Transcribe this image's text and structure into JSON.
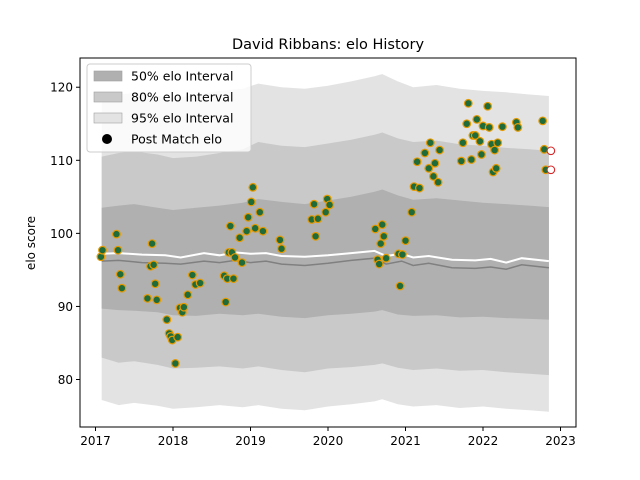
{
  "chart_data": {
    "type": "scatter",
    "title": "David Ribbans: elo History",
    "xlabel": "",
    "ylabel": "elo score",
    "xlim": [
      2016.8,
      2023.2
    ],
    "ylim": [
      73.5,
      124
    ],
    "x_ticks": [
      2017,
      2018,
      2019,
      2020,
      2021,
      2022,
      2023
    ],
    "x_tick_labels": [
      "2017",
      "2018",
      "2019",
      "2020",
      "2021",
      "2022",
      "2023"
    ],
    "y_ticks": [
      80,
      90,
      100,
      110,
      120
    ],
    "y_tick_labels": [
      "80",
      "90",
      "100",
      "110",
      "120"
    ],
    "grid": false,
    "legend_position": "top-left",
    "legend": [
      {
        "label": "50% elo Interval",
        "kind": "band50"
      },
      {
        "label": "80% elo Interval",
        "kind": "band80"
      },
      {
        "label": "95% elo Interval",
        "kind": "band95"
      },
      {
        "label": "Post Match elo",
        "kind": "marker"
      }
    ],
    "colors": {
      "band50": "#b0b0b0",
      "band80": "#c9c9c9",
      "band95": "#e3e3e3",
      "median_line": "#808080",
      "mean_line": "#ffffff",
      "marker_fill": "#1f6b3a",
      "marker_edge": "#e69a00",
      "future_marker_edge": "#d62728"
    },
    "bands": {
      "x": [
        2017.08,
        2017.3,
        2017.5,
        2017.8,
        2018.0,
        2018.3,
        2018.6,
        2018.9,
        2019.1,
        2019.4,
        2019.7,
        2020.0,
        2020.3,
        2020.6,
        2020.7,
        2020.9,
        2021.1,
        2021.4,
        2021.7,
        2022.0,
        2022.3,
        2022.6,
        2022.85
      ],
      "p95_high": [
        118.5,
        119.0,
        119.2,
        118.8,
        118.5,
        118.9,
        119.5,
        119.8,
        120.5,
        120.0,
        119.8,
        120.2,
        120.8,
        121.5,
        121.8,
        120.8,
        120.0,
        120.3,
        119.8,
        119.5,
        119.3,
        119.0,
        118.8
      ],
      "p80_high": [
        110.5,
        111.0,
        111.2,
        110.8,
        110.3,
        110.5,
        111.0,
        111.5,
        112.5,
        112.0,
        111.8,
        112.3,
        112.8,
        113.5,
        113.8,
        113.0,
        112.5,
        112.7,
        112.2,
        112.0,
        111.7,
        111.5,
        111.3
      ],
      "p50_high": [
        103.5,
        103.8,
        104.0,
        103.5,
        103.2,
        103.5,
        103.8,
        104.2,
        104.7,
        104.3,
        104.0,
        104.5,
        105.0,
        105.7,
        106.0,
        105.2,
        104.6,
        104.8,
        104.5,
        104.2,
        104.0,
        103.8,
        103.6
      ],
      "p50_low": [
        89.7,
        89.5,
        89.4,
        89.2,
        88.8,
        88.7,
        89.0,
        88.8,
        89.0,
        88.6,
        88.4,
        88.8,
        89.0,
        89.3,
        89.5,
        88.9,
        88.7,
        88.8,
        88.5,
        88.6,
        88.4,
        88.3,
        88.2
      ],
      "p80_low": [
        83.0,
        82.3,
        82.5,
        82.0,
        81.5,
        81.6,
        81.8,
        81.5,
        81.8,
        81.3,
        81.0,
        81.5,
        81.7,
        82.0,
        82.2,
        81.6,
        81.3,
        81.5,
        81.2,
        81.3,
        81.0,
        80.8,
        80.6
      ],
      "p95_low": [
        77.2,
        76.5,
        76.8,
        76.4,
        76.0,
        76.2,
        76.5,
        76.2,
        76.5,
        76.0,
        75.8,
        76.3,
        76.6,
        77.0,
        77.3,
        76.6,
        76.3,
        76.5,
        76.1,
        76.3,
        76.0,
        75.8,
        75.6
      ]
    },
    "median_line": {
      "x": [
        2017.08,
        2017.3,
        2017.6,
        2017.9,
        2018.1,
        2018.4,
        2018.6,
        2018.8,
        2019.0,
        2019.2,
        2019.4,
        2019.7,
        2020.0,
        2020.3,
        2020.6,
        2020.75,
        2020.95,
        2021.1,
        2021.3,
        2021.6,
        2021.9,
        2022.1,
        2022.3,
        2022.5,
        2022.85
      ],
      "y": [
        96.2,
        96.3,
        96.0,
        95.9,
        95.8,
        96.2,
        96.0,
        96.3,
        96.0,
        96.2,
        95.8,
        95.6,
        95.9,
        96.3,
        96.6,
        95.8,
        96.2,
        95.6,
        95.9,
        95.3,
        95.2,
        95.4,
        95.1,
        95.7,
        95.3
      ]
    },
    "mean_line": {
      "x": [
        2017.08,
        2017.3,
        2017.6,
        2017.9,
        2018.1,
        2018.4,
        2018.6,
        2018.8,
        2019.0,
        2019.2,
        2019.4,
        2019.7,
        2020.0,
        2020.3,
        2020.6,
        2020.75,
        2020.95,
        2021.1,
        2021.3,
        2021.6,
        2021.9,
        2022.1,
        2022.3,
        2022.5,
        2022.85
      ],
      "y": [
        97.2,
        97.3,
        97.1,
        97.0,
        96.7,
        97.3,
        97.0,
        97.4,
        97.2,
        97.3,
        96.9,
        96.8,
        97.0,
        97.3,
        97.6,
        96.9,
        97.2,
        96.7,
        96.9,
        96.4,
        96.3,
        96.5,
        96.0,
        96.6,
        96.2
      ]
    },
    "points": [
      {
        "x": 2017.07,
        "y": 96.8
      },
      {
        "x": 2017.09,
        "y": 97.7
      },
      {
        "x": 2017.27,
        "y": 99.9
      },
      {
        "x": 2017.29,
        "y": 97.7
      },
      {
        "x": 2017.32,
        "y": 94.4
      },
      {
        "x": 2017.34,
        "y": 92.5
      },
      {
        "x": 2017.67,
        "y": 91.1
      },
      {
        "x": 2017.71,
        "y": 95.5
      },
      {
        "x": 2017.73,
        "y": 98.6
      },
      {
        "x": 2017.75,
        "y": 95.7
      },
      {
        "x": 2017.77,
        "y": 93.1
      },
      {
        "x": 2017.79,
        "y": 90.9
      },
      {
        "x": 2017.92,
        "y": 88.2
      },
      {
        "x": 2017.95,
        "y": 86.3
      },
      {
        "x": 2017.97,
        "y": 85.9
      },
      {
        "x": 2017.99,
        "y": 85.4
      },
      {
        "x": 2018.03,
        "y": 82.2
      },
      {
        "x": 2018.06,
        "y": 85.8
      },
      {
        "x": 2018.09,
        "y": 89.8
      },
      {
        "x": 2018.12,
        "y": 89.2
      },
      {
        "x": 2018.14,
        "y": 89.9
      },
      {
        "x": 2018.19,
        "y": 91.6
      },
      {
        "x": 2018.25,
        "y": 94.3
      },
      {
        "x": 2018.29,
        "y": 93.0
      },
      {
        "x": 2018.35,
        "y": 93.2
      },
      {
        "x": 2018.66,
        "y": 94.2
      },
      {
        "x": 2018.68,
        "y": 90.6
      },
      {
        "x": 2018.7,
        "y": 93.8
      },
      {
        "x": 2018.72,
        "y": 97.4
      },
      {
        "x": 2018.74,
        "y": 101.0
      },
      {
        "x": 2018.76,
        "y": 97.4
      },
      {
        "x": 2018.78,
        "y": 93.8
      },
      {
        "x": 2018.8,
        "y": 96.7
      },
      {
        "x": 2018.86,
        "y": 99.4
      },
      {
        "x": 2018.89,
        "y": 96.0
      },
      {
        "x": 2018.95,
        "y": 100.3
      },
      {
        "x": 2018.97,
        "y": 102.2
      },
      {
        "x": 2019.01,
        "y": 104.3
      },
      {
        "x": 2019.03,
        "y": 106.3
      },
      {
        "x": 2019.06,
        "y": 100.7
      },
      {
        "x": 2019.12,
        "y": 102.9
      },
      {
        "x": 2019.16,
        "y": 100.3
      },
      {
        "x": 2019.38,
        "y": 99.1
      },
      {
        "x": 2019.4,
        "y": 97.9
      },
      {
        "x": 2019.79,
        "y": 101.9
      },
      {
        "x": 2019.82,
        "y": 104.0
      },
      {
        "x": 2019.84,
        "y": 99.6
      },
      {
        "x": 2019.87,
        "y": 102.0
      },
      {
        "x": 2019.97,
        "y": 102.9
      },
      {
        "x": 2019.99,
        "y": 104.7
      },
      {
        "x": 2020.02,
        "y": 103.9
      },
      {
        "x": 2020.61,
        "y": 100.6
      },
      {
        "x": 2020.64,
        "y": 96.4
      },
      {
        "x": 2020.66,
        "y": 95.8
      },
      {
        "x": 2020.68,
        "y": 98.6
      },
      {
        "x": 2020.7,
        "y": 101.2
      },
      {
        "x": 2020.72,
        "y": 99.6
      },
      {
        "x": 2020.75,
        "y": 96.6
      },
      {
        "x": 2020.91,
        "y": 97.2
      },
      {
        "x": 2020.93,
        "y": 92.8
      },
      {
        "x": 2020.96,
        "y": 97.1
      },
      {
        "x": 2021.0,
        "y": 99.0
      },
      {
        "x": 2021.08,
        "y": 102.9
      },
      {
        "x": 2021.11,
        "y": 106.4
      },
      {
        "x": 2021.15,
        "y": 109.8
      },
      {
        "x": 2021.18,
        "y": 106.2
      },
      {
        "x": 2021.25,
        "y": 111.0
      },
      {
        "x": 2021.3,
        "y": 108.9
      },
      {
        "x": 2021.32,
        "y": 112.4
      },
      {
        "x": 2021.36,
        "y": 107.8
      },
      {
        "x": 2021.38,
        "y": 109.6
      },
      {
        "x": 2021.42,
        "y": 107.0
      },
      {
        "x": 2021.44,
        "y": 111.4
      },
      {
        "x": 2021.72,
        "y": 109.9
      },
      {
        "x": 2021.74,
        "y": 112.4
      },
      {
        "x": 2021.79,
        "y": 115.0
      },
      {
        "x": 2021.81,
        "y": 117.8
      },
      {
        "x": 2021.85,
        "y": 110.1
      },
      {
        "x": 2021.87,
        "y": 113.4
      },
      {
        "x": 2021.9,
        "y": 113.4
      },
      {
        "x": 2021.92,
        "y": 115.6
      },
      {
        "x": 2021.96,
        "y": 112.6
      },
      {
        "x": 2021.98,
        "y": 110.8
      },
      {
        "x": 2022.0,
        "y": 114.7
      },
      {
        "x": 2022.06,
        "y": 117.4
      },
      {
        "x": 2022.08,
        "y": 114.5
      },
      {
        "x": 2022.11,
        "y": 112.2
      },
      {
        "x": 2022.13,
        "y": 108.4
      },
      {
        "x": 2022.15,
        "y": 111.4
      },
      {
        "x": 2022.17,
        "y": 108.9
      },
      {
        "x": 2022.19,
        "y": 112.4
      },
      {
        "x": 2022.25,
        "y": 114.6
      },
      {
        "x": 2022.43,
        "y": 115.2
      },
      {
        "x": 2022.45,
        "y": 114.5
      },
      {
        "x": 2022.77,
        "y": 115.4
      },
      {
        "x": 2022.79,
        "y": 111.5
      },
      {
        "x": 2022.81,
        "y": 108.7
      }
    ],
    "future_points": [
      {
        "x": 2022.85,
        "y": 111.3
      },
      {
        "x": 2022.85,
        "y": 108.7
      }
    ]
  }
}
